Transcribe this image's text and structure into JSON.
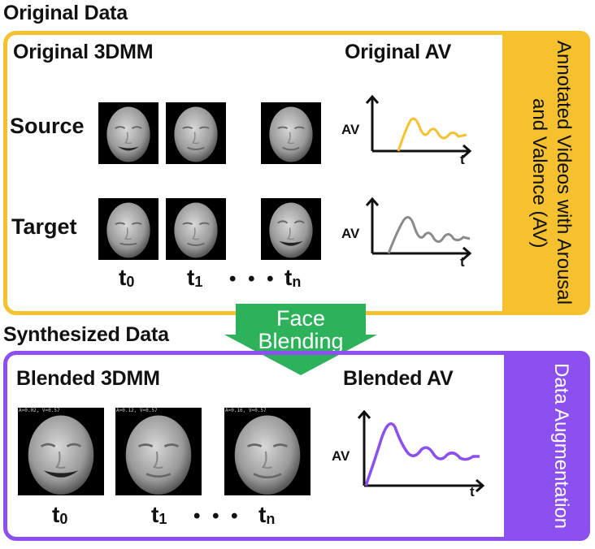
{
  "original": {
    "section_title": "Original Data",
    "faces_header": "Original 3DMM",
    "av_header": "Original AV",
    "side_label": "Annotated Videos with Arousal and Valence (AV)",
    "row_source": "Source",
    "row_target": "Target",
    "ticks": [
      "t",
      "t",
      "t"
    ],
    "tick_subs": [
      "0",
      "1",
      "n"
    ],
    "dots": "• • •"
  },
  "arrow": {
    "line1": "Face",
    "line2": "Blending"
  },
  "synth": {
    "section_title": "Synthesized Data",
    "faces_header": "Blended 3DMM",
    "av_header": "Blended AV",
    "side_label": "Data Augmentation",
    "ticks": [
      "t",
      "t",
      "t"
    ],
    "tick_subs": [
      "0",
      "1",
      "n"
    ],
    "dots": "• • •",
    "overlays": [
      "A=0.02, V=0.57",
      "A=0.12, V=0.57",
      "A=0.16, V=0.57"
    ]
  },
  "plots": {
    "y_label": "AV",
    "x_label": "t"
  },
  "colors": {
    "yellow": "#F5C12E",
    "purple": "#8C4FF0",
    "green": "#2DB15A",
    "gray": "#8A8A8A"
  }
}
